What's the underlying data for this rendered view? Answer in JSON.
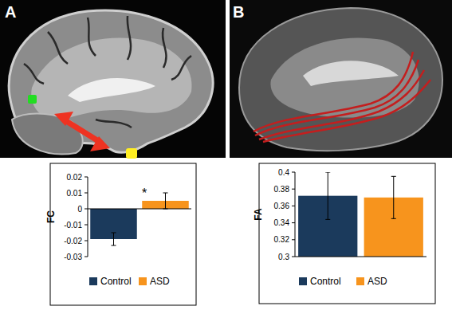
{
  "chart_data": [
    {
      "type": "bar",
      "title": "A",
      "y_label": "FC",
      "categories": [
        "Control",
        "ASD"
      ],
      "values": [
        -0.019,
        0.005
      ],
      "errors": [
        0.004,
        0.005
      ],
      "colors": [
        "#1b3a5c",
        "#f7941d"
      ],
      "ylim": [
        -0.03,
        0.02
      ],
      "yticks": [
        -0.03,
        -0.02,
        -0.01,
        0,
        0.01,
        0.02
      ],
      "grid": false,
      "legend": "bottom",
      "annotations": [
        {
          "text": "*",
          "category": "ASD"
        }
      ]
    },
    {
      "type": "bar",
      "title": "B",
      "y_label": "FA",
      "categories": [
        "Control",
        "ASD"
      ],
      "values": [
        0.372,
        0.37
      ],
      "errors": [
        0.028,
        0.025
      ],
      "colors": [
        "#1b3a5c",
        "#f7941d"
      ],
      "ylim": [
        0.3,
        0.4
      ],
      "yticks": [
        0.3,
        0.32,
        0.34,
        0.36,
        0.38,
        0.4
      ],
      "grid": false,
      "legend": "bottom"
    }
  ]
}
